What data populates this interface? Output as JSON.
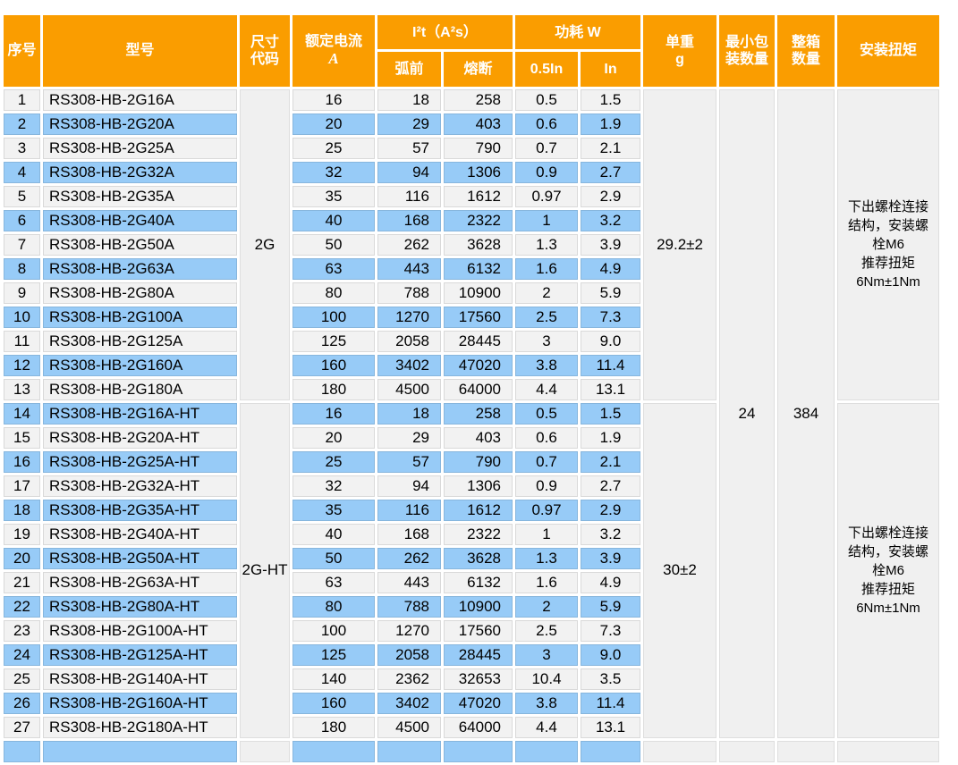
{
  "colors": {
    "header_bg": "#FA9D00",
    "header_text": "#FFFFFF",
    "row_light": "#F2F2F2",
    "row_blue": "#97CBF7",
    "merged_bg": "#F0F0F0",
    "text": "#000000"
  },
  "table": {
    "headers": {
      "no": "序号",
      "model": "型号",
      "size_code": "尺寸\n代码",
      "rated_current_line1": "额定电流",
      "rated_current_line2": "A",
      "i2t_group": "I²t（A²s）",
      "prearc": "弧前",
      "melt": "熔断",
      "power_group": "功耗 W",
      "p_half_in": "0.5In",
      "p_in": "In",
      "unit_weight": "单重\ng",
      "min_pkg": "最小包\n装数量",
      "carton": "整箱\n数量",
      "torque": "安装扭矩"
    },
    "min_package_qty": "24",
    "carton_qty": "384",
    "groups": [
      {
        "size_code": "2G",
        "unit_weight": "29.2±2",
        "torque_note": "下出螺栓连接\n结构，安装螺\n栓M6\n推荐扭矩\n6Nm±1Nm",
        "rows": [
          {
            "no": "1",
            "model": "RS308-HB-2G16A",
            "current": "16",
            "prearc": "18",
            "melt": "258",
            "p_half": "0.5",
            "p_full": "1.5"
          },
          {
            "no": "2",
            "model": "RS308-HB-2G20A",
            "current": "20",
            "prearc": "29",
            "melt": "403",
            "p_half": "0.6",
            "p_full": "1.9"
          },
          {
            "no": "3",
            "model": "RS308-HB-2G25A",
            "current": "25",
            "prearc": "57",
            "melt": "790",
            "p_half": "0.7",
            "p_full": "2.1"
          },
          {
            "no": "4",
            "model": "RS308-HB-2G32A",
            "current": "32",
            "prearc": "94",
            "melt": "1306",
            "p_half": "0.9",
            "p_full": "2.7"
          },
          {
            "no": "5",
            "model": "RS308-HB-2G35A",
            "current": "35",
            "prearc": "116",
            "melt": "1612",
            "p_half": "0.97",
            "p_full": "2.9"
          },
          {
            "no": "6",
            "model": "RS308-HB-2G40A",
            "current": "40",
            "prearc": "168",
            "melt": "2322",
            "p_half": "1",
            "p_full": "3.2"
          },
          {
            "no": "7",
            "model": "RS308-HB-2G50A",
            "current": "50",
            "prearc": "262",
            "melt": "3628",
            "p_half": "1.3",
            "p_full": "3.9"
          },
          {
            "no": "8",
            "model": "RS308-HB-2G63A",
            "current": "63",
            "prearc": "443",
            "melt": "6132",
            "p_half": "1.6",
            "p_full": "4.9"
          },
          {
            "no": "9",
            "model": "RS308-HB-2G80A",
            "current": "80",
            "prearc": "788",
            "melt": "10900",
            "p_half": "2",
            "p_full": "5.9"
          },
          {
            "no": "10",
            "model": "RS308-HB-2G100A",
            "current": "100",
            "prearc": "1270",
            "melt": "17560",
            "p_half": "2.5",
            "p_full": "7.3"
          },
          {
            "no": "11",
            "model": "RS308-HB-2G125A",
            "current": "125",
            "prearc": "2058",
            "melt": "28445",
            "p_half": "3",
            "p_full": "9.0"
          },
          {
            "no": "12",
            "model": "RS308-HB-2G160A",
            "current": "160",
            "prearc": "3402",
            "melt": "47020",
            "p_half": "3.8",
            "p_full": "11.4"
          },
          {
            "no": "13",
            "model": "RS308-HB-2G180A",
            "current": "180",
            "prearc": "4500",
            "melt": "64000",
            "p_half": "4.4",
            "p_full": "13.1"
          }
        ]
      },
      {
        "size_code": "2G-HT",
        "unit_weight": "30±2",
        "torque_note": "下出螺栓连接\n结构，安装螺\n栓M6\n推荐扭矩\n6Nm±1Nm",
        "rows": [
          {
            "no": "14",
            "model": "RS308-HB-2G16A-HT",
            "current": "16",
            "prearc": "18",
            "melt": "258",
            "p_half": "0.5",
            "p_full": "1.5"
          },
          {
            "no": "15",
            "model": "RS308-HB-2G20A-HT",
            "current": "20",
            "prearc": "29",
            "melt": "403",
            "p_half": "0.6",
            "p_full": "1.9"
          },
          {
            "no": "16",
            "model": "RS308-HB-2G25A-HT",
            "current": "25",
            "prearc": "57",
            "melt": "790",
            "p_half": "0.7",
            "p_full": "2.1"
          },
          {
            "no": "17",
            "model": "RS308-HB-2G32A-HT",
            "current": "32",
            "prearc": "94",
            "melt": "1306",
            "p_half": "0.9",
            "p_full": "2.7"
          },
          {
            "no": "18",
            "model": "RS308-HB-2G35A-HT",
            "current": "35",
            "prearc": "116",
            "melt": "1612",
            "p_half": "0.97",
            "p_full": "2.9"
          },
          {
            "no": "19",
            "model": "RS308-HB-2G40A-HT",
            "current": "40",
            "prearc": "168",
            "melt": "2322",
            "p_half": "1",
            "p_full": "3.2"
          },
          {
            "no": "20",
            "model": "RS308-HB-2G50A-HT",
            "current": "50",
            "prearc": "262",
            "melt": "3628",
            "p_half": "1.3",
            "p_full": "3.9"
          },
          {
            "no": "21",
            "model": "RS308-HB-2G63A-HT",
            "current": "63",
            "prearc": "443",
            "melt": "6132",
            "p_half": "1.6",
            "p_full": "4.9"
          },
          {
            "no": "22",
            "model": "RS308-HB-2G80A-HT",
            "current": "80",
            "prearc": "788",
            "melt": "10900",
            "p_half": "2",
            "p_full": "5.9"
          },
          {
            "no": "23",
            "model": "RS308-HB-2G100A-HT",
            "current": "100",
            "prearc": "1270",
            "melt": "17560",
            "p_half": "2.5",
            "p_full": "7.3"
          },
          {
            "no": "24",
            "model": "RS308-HB-2G125A-HT",
            "current": "125",
            "prearc": "2058",
            "melt": "28445",
            "p_half": "3",
            "p_full": "9.0"
          },
          {
            "no": "25",
            "model": "RS308-HB-2G140A-HT",
            "current": "140",
            "prearc": "2362",
            "melt": "32653",
            "p_half": "10.4",
            "p_full": "3.5"
          },
          {
            "no": "26",
            "model": "RS308-HB-2G160A-HT",
            "current": "160",
            "prearc": "3402",
            "melt": "47020",
            "p_half": "3.8",
            "p_full": "11.4"
          },
          {
            "no": "27",
            "model": "RS308-HB-2G180A-HT",
            "current": "180",
            "prearc": "4500",
            "melt": "64000",
            "p_half": "4.4",
            "p_full": "13.1"
          }
        ]
      }
    ]
  }
}
